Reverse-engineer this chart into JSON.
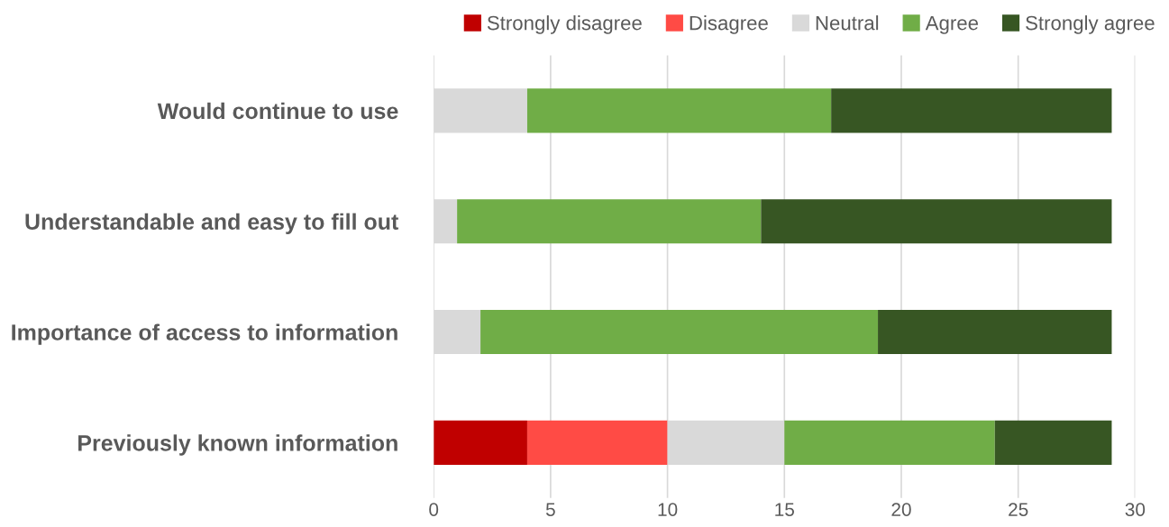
{
  "chart_data": {
    "type": "bar",
    "orientation": "horizontal",
    "stacked": true,
    "categories": [
      "Would continue to use",
      "Understandable and easy to fill out",
      "Importance of access to information",
      "Previously known information"
    ],
    "series": [
      {
        "name": "Strongly disagree",
        "color": "#c00000",
        "values": [
          0,
          0,
          0,
          4
        ]
      },
      {
        "name": "Disagree",
        "color": "#ff4b45",
        "values": [
          0,
          0,
          0,
          6
        ]
      },
      {
        "name": "Neutral",
        "color": "#d9d9d9",
        "values": [
          4,
          1,
          2,
          5
        ]
      },
      {
        "name": "Agree",
        "color": "#70ad47",
        "values": [
          13,
          13,
          17,
          9
        ]
      },
      {
        "name": "Strongly agree",
        "color": "#375623",
        "values": [
          12,
          15,
          10,
          5
        ]
      }
    ],
    "xlim": [
      0,
      30
    ],
    "xticks": [
      0,
      5,
      10,
      15,
      20,
      25,
      30
    ],
    "grid": "x",
    "legend": "top right"
  }
}
